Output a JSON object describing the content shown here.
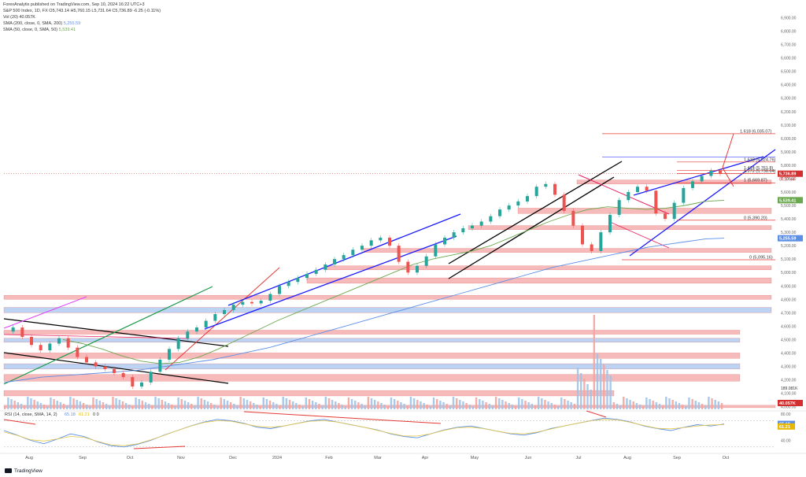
{
  "publisher_line": "ForexAnalytix published on TradingView.com, Sep 10, 2024 16:22 UTC+3",
  "header": {
    "symbol": "S&P 500 Index, 1D, FX",
    "ohlc": "O5,743.14 H5,760.15 L5,731.64 C5,736.89 -6.25 (-0.11%)",
    "vol": "Vol (20)  40.057K",
    "sma200": "SMA (200, close, 0, SMA, 200)",
    "sma200_val": "5,255.59",
    "sma50": "SMA (50, close, 0, SMA, 50)",
    "sma50_val": "5,539.41"
  },
  "rsi_label": "RSI (14, close, SMA, 14, 2)",
  "rsi_val1": "65.18",
  "rsi_val2": "61.21",
  "rsi_extra": "0  0",
  "brand": "TradingView",
  "colors": {
    "price_up": "#26a69a",
    "price_down": "#ef5350",
    "sma200": "#5b8fe6",
    "sma50": "#6aa84f",
    "fib": "#e53935",
    "channel": "#1a1aff",
    "last": "#d32f2f"
  },
  "chart_data": {
    "type": "line",
    "price_axis": [
      "6,900.00",
      "6,800.00",
      "6,700.00",
      "6,600.00",
      "6,500.00",
      "6,400.00",
      "6,300.00",
      "6,200.00",
      "6,100.00",
      "6,000.00",
      "5,900.00",
      "5,800.00",
      "5,700.00",
      "5,600.00",
      "5,500.00",
      "5,400.00",
      "5,300.00",
      "5,200.00",
      "5,100.00",
      "5,000.00",
      "4,900.00",
      "4,800.00",
      "4,700.00",
      "4,600.00",
      "4,500.00",
      "4,400.00",
      "4,300.00",
      "4,200.00",
      "4,100.00",
      "4,000.00"
    ],
    "ylim": [
      3980,
      6950
    ],
    "time_axis": [
      "Aug",
      "Sep",
      "Oct",
      "Nov",
      "Dec",
      "2024",
      "Feb",
      "Mar",
      "Apr",
      "May",
      "Jun",
      "Jul",
      "Aug",
      "Sep",
      "Oct"
    ],
    "series": [
      {
        "name": "S&P 500 Index",
        "values": [
          4560,
          4590,
          4520,
          4460,
          4420,
          4470,
          4510,
          4440,
          4370,
          4330,
          4300,
          4280,
          4250,
          4220,
          4150,
          4180,
          4260,
          4350,
          4430,
          4510,
          4560,
          4590,
          4640,
          4690,
          4720,
          4760,
          4780,
          4770,
          4790,
          4840,
          4900,
          4930,
          4960,
          4990,
          5020,
          5060,
          5100,
          5130,
          5170,
          5200,
          5240,
          5260,
          5200,
          5080,
          5000,
          5050,
          5120,
          5210,
          5260,
          5300,
          5330,
          5350,
          5380,
          5420,
          5470,
          5500,
          5530,
          5570,
          5640,
          5660,
          5580,
          5460,
          5350,
          5210,
          5160,
          5300,
          5430,
          5540,
          5600,
          5640,
          5610,
          5440,
          5400,
          5520,
          5630,
          5680,
          5720,
          5760,
          5737
        ]
      },
      {
        "name": "SMA (200)",
        "values": [
          4180,
          4200,
          4220,
          4230,
          4240,
          4250,
          4260,
          4270,
          4290,
          4310,
          4330,
          4350,
          4380,
          4410,
          4440,
          4480,
          4520,
          4560,
          4600,
          4640,
          4680,
          4720,
          4760,
          4800,
          4840,
          4880,
          4920,
          4960,
          5000,
          5040,
          5070,
          5100,
          5130,
          5160,
          5190,
          5210,
          5230,
          5250,
          5256
        ]
      },
      {
        "name": "SMA (50)",
        "values": [
          4500,
          4470,
          4430,
          4380,
          4340,
          4320,
          4330,
          4370,
          4430,
          4500,
          4570,
          4640,
          4700,
          4760,
          4820,
          4880,
          4940,
          5000,
          5060,
          5100,
          5130,
          5160,
          5200,
          5260,
          5320,
          5380,
          5430,
          5470,
          5490,
          5480,
          5470,
          5480,
          5500,
          5530,
          5539
        ]
      }
    ],
    "value_labels": [
      {
        "text": "1.618 (6,035.07)",
        "value": 6035
      },
      {
        "text": "1.618 (5,824.76)",
        "value": 5824
      },
      {
        "text": "1.414 (5,761.8)",
        "value": 5761
      },
      {
        "text": "1.272 (5,738.64)",
        "value": 5738
      },
      {
        "text": "1 (5,669.87)",
        "value": 5669
      },
      {
        "text": "0 (5,390.20)",
        "value": 5390
      },
      {
        "text": "0 (5,095.16)",
        "value": 5095
      }
    ],
    "last_price": {
      "text": "5,736.89",
      "value": 5736.89
    },
    "last_price_sub": "07:37:44",
    "sma50_tag": {
      "text": "5,539.41",
      "value": 5539.41
    },
    "sma200_tag": {
      "text": "5,255.59",
      "value": 5255.59
    },
    "vol_tags": [
      "189.081K",
      "40.057K"
    ],
    "rsi_axis": [
      "80.00",
      "40.00"
    ],
    "rsi_tags": [
      "65.18",
      "61.21"
    ],
    "rsi_values": [
      55,
      48,
      40,
      35,
      42,
      50,
      46,
      38,
      32,
      30,
      34,
      40,
      48,
      55,
      62,
      68,
      72,
      70,
      66,
      60,
      58,
      62,
      66,
      70,
      72,
      68,
      64,
      60,
      56,
      50,
      46,
      44,
      50,
      56,
      60,
      62,
      58,
      54,
      50,
      48,
      52,
      58,
      62,
      66,
      70,
      74,
      72,
      68,
      62,
      58,
      55,
      60,
      64,
      62,
      65
    ],
    "legend": "none",
    "grid": false
  }
}
